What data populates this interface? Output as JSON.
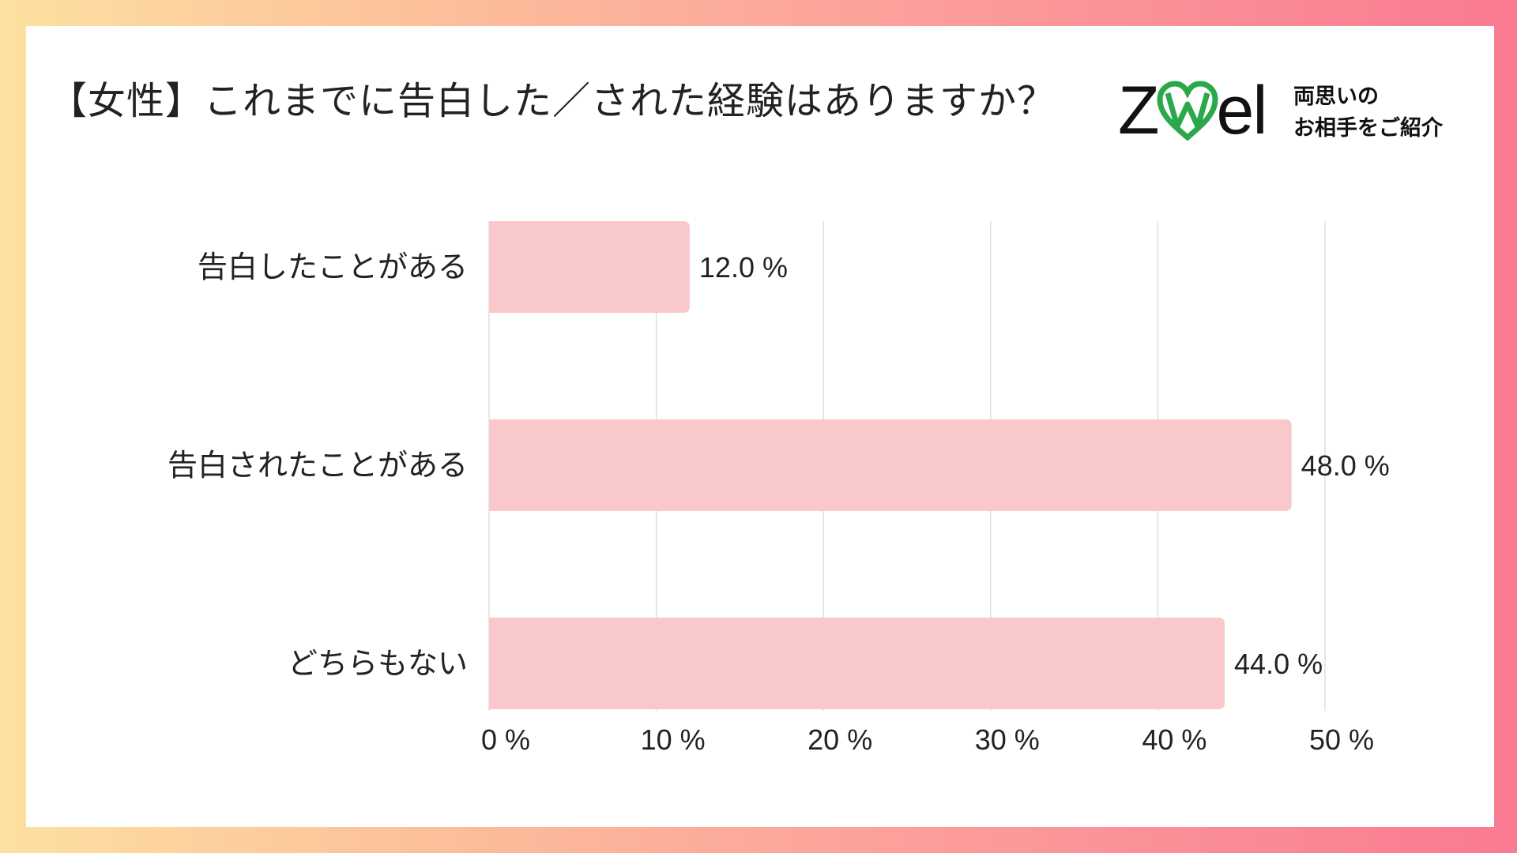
{
  "title": "【女性】これまでに告白した／された経験はありますか？",
  "logo": {
    "wordmark_left": "Z",
    "wordmark_right": "el",
    "heart_icon": "heart-w-icon",
    "tagline_line1": "両思いの",
    "tagline_line2": "お相手をご紹介",
    "brand_color": "#2aa84a"
  },
  "colors": {
    "bar": "#f8c8cb",
    "grid": "#d9d9d9",
    "text": "#222222"
  },
  "chart_data": {
    "type": "bar",
    "orientation": "horizontal",
    "categories": [
      "告白したことがある",
      "告白されたことがある",
      "どちらもない"
    ],
    "values": [
      12.0,
      48.0,
      44.0
    ],
    "value_labels": [
      "12.0 %",
      "48.0 %",
      "44.0 %"
    ],
    "xlim": [
      0,
      50
    ],
    "ticks": [
      0,
      10,
      20,
      30,
      40,
      50
    ],
    "tick_labels": [
      "0 %",
      "10 %",
      "20 %",
      "30 %",
      "40 %",
      "50 %"
    ],
    "grid": true,
    "legend": "none"
  }
}
